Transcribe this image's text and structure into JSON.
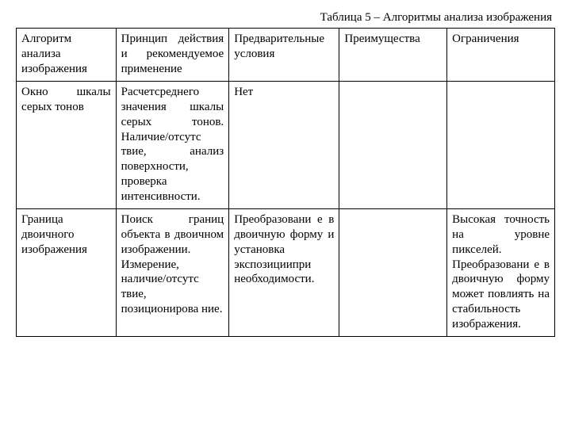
{
  "caption": "Таблица 5 – Алгоритмы анализа изображения",
  "table": {
    "border_color": "#000000",
    "background_color": "#ffffff",
    "font_family": "Times New Roman",
    "font_size_pt": 11,
    "columns": [
      {
        "key": "algo",
        "header": "Алгоритм анализа изображения",
        "width_pct": 18.5
      },
      {
        "key": "princ",
        "header": "Принцип действия и рекомендуемое применение",
        "width_pct": 21
      },
      {
        "key": "precond",
        "header": "Предваритель­ные условия",
        "width_pct": 20.5
      },
      {
        "key": "pros",
        "header": "Преимущества",
        "width_pct": 20
      },
      {
        "key": "cons",
        "header": "Ограничения",
        "width_pct": 20
      }
    ],
    "rows": [
      {
        "algo": "Окно шкалы серых тонов",
        "princ": "Расчетсреднего значения шкалы серых тонов. Наличие/отсутс твие, анализ поверхности, проверка интенсивности.",
        "precond": "Нет",
        "pros": "",
        "cons": ""
      },
      {
        "algo": "Граница двоичного изображения",
        "princ": "Поиск границ объекта в двоичном изображении. Измерение, наличие/отсутс твие, позиционирова ние.",
        "precond": "Преобразовани е в двоичную форму и установка экспозициипри необходимости.",
        "pros": "",
        "cons": "Высокая точность на уровне пикселей. Преобразовани е в двоичную форму может повлиять на стабильность изображения."
      }
    ]
  }
}
